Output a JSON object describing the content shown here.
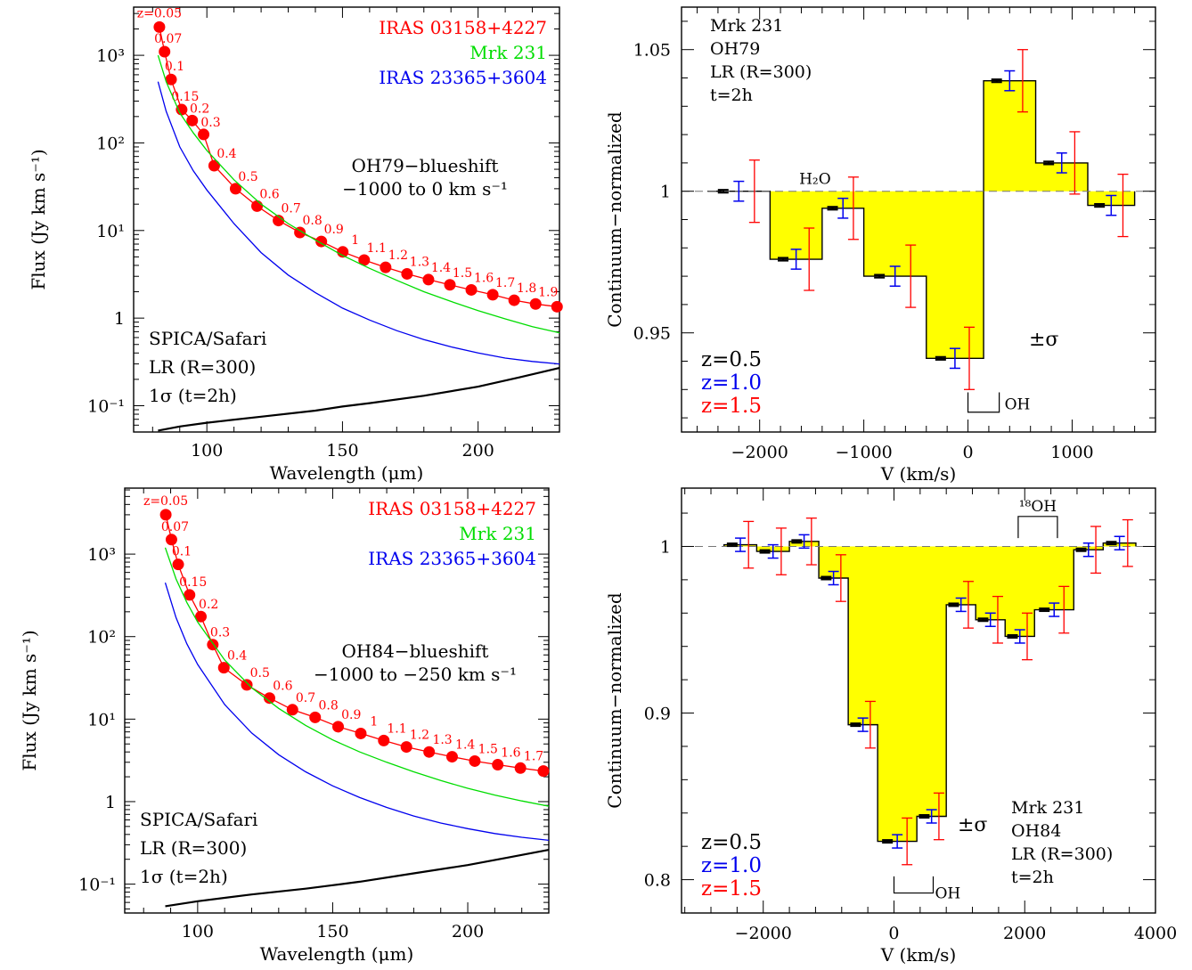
{
  "chart_data": [
    {
      "panel": "top-left",
      "type": "line",
      "xlabel": "Wavelength (μm)",
      "ylabel": "Flux (Jy km s⁻¹)",
      "xlim": [
        73,
        230
      ],
      "ylim_log10": [
        -1.3,
        3.55
      ],
      "yscale": "log",
      "xticks": [
        100,
        150,
        200
      ],
      "yticklabels": [
        "10⁻¹",
        "1",
        "10¹",
        "10²",
        "10³"
      ],
      "ytick_values": [
        0.1,
        1,
        10,
        100,
        1000
      ],
      "legend": [
        {
          "name": "IRAS 03158+4227",
          "color": "#ff0000"
        },
        {
          "name": "Mrk 231",
          "color": "#00dd00"
        },
        {
          "name": "IRAS 23365+3604",
          "color": "#0000ee"
        }
      ],
      "annotation_lines": [
        "OH79−blueshift",
        "−1000 to 0 km s⁻¹"
      ],
      "sensitivity_label_lines": [
        "SPICA/Safari",
        "LR (R=300)",
        "1σ (t=2h)"
      ],
      "series": [
        {
          "name": "IRAS 03158+4227",
          "color": "#ff0000",
          "markers": true,
          "x": [
            82.5,
            84.4,
            86.8,
            90.7,
            94.6,
            98.8,
            102.7,
            110.6,
            118.5,
            126.4,
            134.3,
            142.2,
            150.1,
            158.0,
            165.9,
            173.8,
            181.7,
            189.6,
            197.5,
            205.4,
            213.3,
            221.2,
            229.1
          ],
          "y": [
            2100,
            1100,
            530,
            240,
            180,
            125,
            55,
            30,
            19,
            13,
            9.5,
            7.5,
            5.7,
            4.6,
            3.8,
            3.2,
            2.75,
            2.4,
            2.1,
            1.85,
            1.6,
            1.45,
            1.35
          ],
          "labels": [
            "z=0.05",
            "0.07",
            "0.1",
            "0.15",
            "0.2",
            "0.3",
            "0.4",
            "0.5",
            "0.6",
            "0.7",
            "0.8",
            "0.9",
            "1",
            "1.1",
            "1.2",
            "1.3",
            "1.4",
            "1.5",
            "1.6",
            "1.7",
            "1.8",
            "1.9"
          ]
        },
        {
          "name": "Mrk 231",
          "color": "#00dd00",
          "x": [
            82,
            85,
            90,
            95,
            100,
            110,
            120,
            130,
            140,
            150,
            160,
            170,
            180,
            190,
            200,
            210,
            220,
            230
          ],
          "y": [
            1000,
            500,
            220,
            130,
            82,
            38,
            20,
            12,
            7.8,
            5.2,
            3.7,
            2.7,
            2.0,
            1.55,
            1.22,
            0.98,
            0.8,
            0.68
          ]
        },
        {
          "name": "IRAS 23365+3604",
          "color": "#0000ee",
          "x": [
            82,
            85,
            90,
            95,
            100,
            110,
            120,
            130,
            140,
            150,
            160,
            170,
            180,
            190,
            200,
            210,
            220,
            230
          ],
          "y": [
            500,
            230,
            90,
            48,
            29,
            12,
            5.6,
            3.1,
            1.95,
            1.3,
            0.95,
            0.72,
            0.57,
            0.47,
            0.4,
            0.35,
            0.32,
            0.3
          ]
        },
        {
          "name": "SPICA/Safari 1σ",
          "color": "#000000",
          "x": [
            82,
            90,
            100,
            120,
            140,
            150,
            160,
            180,
            200,
            215,
            230
          ],
          "y": [
            0.052,
            0.058,
            0.064,
            0.075,
            0.088,
            0.098,
            0.107,
            0.13,
            0.165,
            0.21,
            0.27
          ]
        }
      ]
    },
    {
      "panel": "top-right",
      "type": "bar",
      "xlabel": "V (km/s)",
      "ylabel": "Continuum−normalized",
      "xlim": [
        -2750,
        1800
      ],
      "ylim": [
        0.915,
        1.065
      ],
      "xticks": [
        -2000,
        -1000,
        0,
        1000
      ],
      "xticklabels": [
        "−2000",
        "−1000",
        "0",
        "1000"
      ],
      "yticks": [
        0.95,
        1,
        1.05
      ],
      "yticklabels": [
        "0.95",
        "1",
        "1.05"
      ],
      "bin_edges": [
        -2500,
        -1900,
        -1400,
        -1000,
        -400,
        150,
        650,
        1150,
        1600
      ],
      "values": [
        1.0,
        0.976,
        0.994,
        0.97,
        0.941,
        1.039,
        1.01,
        0.995
      ],
      "errors_black": [
        0.0005,
        0.0005,
        0.0005,
        0.0005,
        0.0005,
        0.0005,
        0.0005,
        0.0005
      ],
      "errors_blue": [
        0.0035,
        0.0035,
        0.0035,
        0.0035,
        0.0035,
        0.0035,
        0.0035,
        0.0035
      ],
      "errors_red": [
        0.011,
        0.011,
        0.011,
        0.011,
        0.011,
        0.011,
        0.011,
        0.011
      ],
      "info_lines": [
        "Mrk 231",
        "OH79",
        "LR (R=300)",
        "t=2h"
      ],
      "z_legend": [
        {
          "label": "z=0.5",
          "color": "#000000"
        },
        {
          "label": "z=1.0",
          "color": "#0000ee"
        },
        {
          "label": "z=1.5",
          "color": "#ff0000"
        }
      ],
      "sigma_label": "±σ",
      "line_labels": {
        "h2o": "H₂O",
        "oh": "OH"
      }
    },
    {
      "panel": "bottom-left",
      "type": "line",
      "xlabel": "Wavelength (μm)",
      "ylabel": "Flux (Jy km s⁻¹)",
      "xlim": [
        73,
        230
      ],
      "ylim_log10": [
        -1.35,
        3.8
      ],
      "yscale": "log",
      "xticks": [
        100,
        150,
        200
      ],
      "yticklabels": [
        "10⁻¹",
        "1",
        "10¹",
        "10²",
        "10³"
      ],
      "ytick_values": [
        0.1,
        1,
        10,
        100,
        1000
      ],
      "legend": [
        {
          "name": "IRAS 03158+4227",
          "color": "#ff0000"
        },
        {
          "name": "Mrk 231",
          "color": "#00dd00"
        },
        {
          "name": "IRAS 23365+3604",
          "color": "#0000ee"
        }
      ],
      "annotation_lines": [
        "OH84−blueshift",
        "−1000 to −250 km s⁻¹"
      ],
      "sensitivity_label_lines": [
        "SPICA/Safari",
        "LR (R=300)",
        "1σ (t=2h)"
      ],
      "series": [
        {
          "name": "IRAS 03158+4227",
          "color": "#ff0000",
          "markers": true,
          "x": [
            88.2,
            90.3,
            92.8,
            97.0,
            101.2,
            105.6,
            109.7,
            118.2,
            126.6,
            135.1,
            143.5,
            152.0,
            160.4,
            168.9,
            177.3,
            185.7,
            194.2,
            202.6,
            211.1,
            219.5,
            228.0
          ],
          "y": [
            3000,
            1500,
            750,
            320,
            175,
            80,
            42,
            26,
            18,
            13,
            10.5,
            8.1,
            6.7,
            5.5,
            4.6,
            4.0,
            3.5,
            3.1,
            2.8,
            2.55,
            2.35
          ],
          "labels": [
            "z=0.05",
            "0.07",
            "0.1",
            "0.15",
            "0.2",
            "0.3",
            "0.4",
            "0.5",
            "0.6",
            "0.7",
            "0.8",
            "0.9",
            "1",
            "1.1",
            "1.2",
            "1.3",
            "1.4",
            "1.5",
            "1.6",
            "1.7"
          ]
        },
        {
          "name": "Mrk 231",
          "color": "#00dd00",
          "x": [
            88,
            92,
            96,
            100,
            110,
            120,
            130,
            140,
            150,
            160,
            170,
            180,
            190,
            200,
            210,
            220,
            230
          ],
          "y": [
            1200,
            500,
            260,
            150,
            52,
            24,
            13.5,
            8.4,
            5.6,
            4.0,
            3.0,
            2.3,
            1.8,
            1.45,
            1.2,
            1.02,
            0.88
          ]
        },
        {
          "name": "IRAS 23365+3604",
          "color": "#0000ee",
          "x": [
            88,
            92,
            96,
            100,
            110,
            120,
            130,
            140,
            150,
            160,
            170,
            180,
            190,
            200,
            210,
            220,
            230
          ],
          "y": [
            450,
            170,
            82,
            46,
            15,
            6.8,
            3.7,
            2.3,
            1.55,
            1.12,
            0.85,
            0.67,
            0.55,
            0.47,
            0.41,
            0.37,
            0.34
          ]
        },
        {
          "name": "SPICA/Safari 1σ",
          "color": "#000000",
          "x": [
            88,
            100,
            120,
            140,
            150,
            160,
            180,
            200,
            215,
            230
          ],
          "y": [
            0.054,
            0.062,
            0.075,
            0.088,
            0.097,
            0.107,
            0.135,
            0.17,
            0.21,
            0.26
          ]
        }
      ]
    },
    {
      "panel": "bottom-right",
      "type": "bar",
      "xlabel": "V (km/s)",
      "ylabel": "Continuum−normalized",
      "xlim": [
        -3250,
        4000
      ],
      "ylim": [
        0.78,
        1.035
      ],
      "xticks": [
        -2000,
        0,
        2000,
        4000
      ],
      "xticklabels": [
        "−2000",
        "0",
        "2000",
        "4000"
      ],
      "yticks": [
        0.8,
        0.9,
        1
      ],
      "yticklabels": [
        "0.8",
        "0.9",
        "1"
      ],
      "bin_edges": [
        -2600,
        -2100,
        -1600,
        -1150,
        -700,
        -250,
        350,
        800,
        1250,
        1700,
        2150,
        2750,
        3200,
        3700
      ],
      "values": [
        1.001,
        0.997,
        1.003,
        0.981,
        0.893,
        0.823,
        0.838,
        0.965,
        0.956,
        0.946,
        0.962,
        0.998,
        1.002
      ],
      "errors_black": [
        0.0008,
        0.0008,
        0.0008,
        0.0008,
        0.0008,
        0.0008,
        0.0008,
        0.0008,
        0.0008,
        0.0008,
        0.0008,
        0.0008,
        0.0008
      ],
      "errors_blue": [
        0.004,
        0.004,
        0.004,
        0.004,
        0.004,
        0.004,
        0.004,
        0.004,
        0.004,
        0.004,
        0.004,
        0.004,
        0.004
      ],
      "errors_red": [
        0.014,
        0.014,
        0.014,
        0.014,
        0.014,
        0.014,
        0.014,
        0.014,
        0.014,
        0.014,
        0.014,
        0.014,
        0.014
      ],
      "info_lines": [
        "Mrk 231",
        "OH84",
        "LR (R=300)",
        "t=2h"
      ],
      "z_legend": [
        {
          "label": "z=0.5",
          "color": "#000000"
        },
        {
          "label": "z=1.0",
          "color": "#0000ee"
        },
        {
          "label": "z=1.5",
          "color": "#ff0000"
        }
      ],
      "sigma_label": "±σ",
      "line_labels": {
        "oh18": "¹⁸OH",
        "oh": "OH"
      }
    }
  ]
}
